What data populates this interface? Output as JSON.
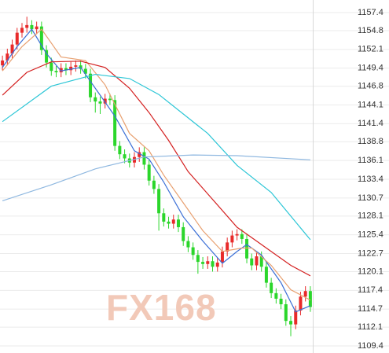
{
  "chart_data": {
    "type": "candlestick",
    "watermark": "FX168",
    "up_color": "#e82a2a",
    "down_color": "#2bd62b",
    "ylim": [
      1109.4,
      1157.4
    ],
    "yticks": [
      1157.4,
      1154.8,
      1152.1,
      1149.4,
      1146.8,
      1144.1,
      1141.4,
      1138.8,
      1136.1,
      1133.4,
      1130.7,
      1128.1,
      1125.4,
      1122.7,
      1120.1,
      1117.4,
      1114.7,
      1112.1,
      1109.4
    ],
    "grid": true,
    "xlim": [
      0,
      64
    ],
    "open": [
      1149.8,
      1150.5,
      1151.5,
      1152.8,
      1154.5,
      1155.2,
      1155.6,
      1155.0,
      1155.4,
      1152.0,
      1150.2,
      1149.0,
      1148.8,
      1149.4,
      1149.1,
      1149.6,
      1149.8,
      1149.3,
      1148.6,
      1145.2,
      1144.6,
      1144.3,
      1145.0,
      1144.8,
      1138.2,
      1137.0,
      1136.4,
      1135.8,
      1136.6,
      1137.3,
      1135.5,
      1133.2,
      1132.0,
      1128.5,
      1127.3,
      1127.0,
      1127.6,
      1126.5,
      1124.5,
      1123.6,
      1122.5,
      1121.5,
      1121.2,
      1121.6,
      1120.8,
      1121.4,
      1123.0,
      1124.3,
      1125.3,
      1125.5,
      1124.8,
      1122.0,
      1121.0,
      1122.3,
      1120.8,
      1118.5,
      1117.0,
      1116.2,
      1115.4,
      1113.0,
      1112.5,
      1114.5,
      1116.5,
      1117.3
    ],
    "high": [
      1151.2,
      1152.2,
      1153.5,
      1155.2,
      1155.9,
      1156.8,
      1156.3,
      1156.1,
      1156.1,
      1152.7,
      1150.9,
      1149.7,
      1150.1,
      1150.1,
      1150.3,
      1150.5,
      1150.5,
      1150.0,
      1149.3,
      1145.9,
      1145.3,
      1145.7,
      1145.7,
      1145.5,
      1138.9,
      1137.7,
      1137.1,
      1137.3,
      1138.0,
      1138.0,
      1136.2,
      1133.9,
      1132.7,
      1129.2,
      1128.0,
      1128.3,
      1128.3,
      1127.2,
      1125.2,
      1124.3,
      1123.2,
      1122.2,
      1122.3,
      1122.3,
      1122.1,
      1123.7,
      1125.0,
      1126.0,
      1126.2,
      1126.2,
      1125.5,
      1122.7,
      1123.0,
      1123.0,
      1121.5,
      1119.2,
      1117.7,
      1116.9,
      1116.1,
      1113.7,
      1115.2,
      1117.2,
      1118.0,
      1118.0
    ],
    "low": [
      1149.1,
      1149.8,
      1150.8,
      1152.1,
      1153.8,
      1154.5,
      1154.3,
      1154.3,
      1151.3,
      1149.5,
      1148.3,
      1148.1,
      1148.1,
      1148.4,
      1148.4,
      1148.9,
      1148.6,
      1147.9,
      1144.5,
      1143.0,
      1142.8,
      1143.6,
      1144.1,
      1137.5,
      1136.3,
      1135.7,
      1135.1,
      1135.1,
      1135.9,
      1134.8,
      1132.5,
      1131.3,
      1126.0,
      1126.6,
      1126.3,
      1126.3,
      1125.8,
      1123.8,
      1122.9,
      1121.8,
      1119.8,
      1120.5,
      1120.5,
      1120.1,
      1120.1,
      1120.7,
      1122.3,
      1123.6,
      1124.6,
      1124.1,
      1121.3,
      1120.3,
      1120.3,
      1120.1,
      1117.8,
      1116.3,
      1115.5,
      1114.7,
      1112.3,
      1110.8,
      1111.8,
      1113.8,
      1115.8,
      1114.3
    ],
    "close": [
      1150.5,
      1151.5,
      1152.8,
      1154.5,
      1155.2,
      1155.6,
      1155.0,
      1155.4,
      1152.0,
      1150.2,
      1149.0,
      1148.8,
      1149.4,
      1149.1,
      1149.6,
      1149.8,
      1149.3,
      1148.6,
      1145.2,
      1144.6,
      1144.3,
      1145.0,
      1144.8,
      1138.2,
      1137.0,
      1136.4,
      1135.8,
      1136.6,
      1137.3,
      1135.5,
      1133.2,
      1132.0,
      1128.5,
      1127.3,
      1127.0,
      1127.6,
      1126.5,
      1124.5,
      1123.6,
      1122.5,
      1121.5,
      1121.2,
      1121.6,
      1120.8,
      1121.4,
      1123.0,
      1124.3,
      1125.3,
      1125.5,
      1124.8,
      1122.0,
      1121.0,
      1122.3,
      1120.8,
      1118.5,
      1117.0,
      1116.2,
      1115.4,
      1113.0,
      1112.5,
      1114.5,
      1116.5,
      1117.3,
      1115.0
    ],
    "lines": [
      {
        "color": "#3b6fd6",
        "x": [
          0,
          3,
          6,
          9,
          12,
          16,
          20,
          23,
          27,
          30,
          33,
          37,
          41,
          45,
          48,
          50,
          53,
          57,
          60,
          63
        ],
        "values": [
          1149.5,
          1152.5,
          1155,
          1151.5,
          1149,
          1149.5,
          1145.5,
          1142.5,
          1137.5,
          1136.3,
          1133,
          1128,
          1124.5,
          1121.3,
          1123,
          1124,
          1122.5,
          1118.5,
          1114.3,
          1115.2
        ]
      },
      {
        "color": "#e8a070",
        "x": [
          0,
          4,
          8,
          12,
          17,
          21,
          26,
          30,
          33,
          37,
          41,
          45,
          49,
          51,
          55,
          59,
          63
        ],
        "values": [
          1149,
          1152.5,
          1155,
          1151,
          1150.5,
          1147,
          1140,
          1137.5,
          1134,
          1130,
          1126,
          1123,
          1123.5,
          1123.5,
          1121,
          1117.5,
          1116
        ]
      },
      {
        "color": "#d42020",
        "x": [
          0,
          5,
          10,
          16,
          21,
          26,
          30,
          34,
          38,
          43,
          48,
          52,
          55,
          59,
          63
        ],
        "values": [
          1145.5,
          1148.8,
          1150.3,
          1150.4,
          1149.5,
          1146.5,
          1143,
          1139,
          1134.5,
          1130.5,
          1126.5,
          1124.5,
          1123,
          1121,
          1119.5
        ]
      },
      {
        "color": "#2cc6d6",
        "x": [
          0,
          10,
          19,
          26,
          32,
          42,
          48,
          55,
          63
        ],
        "values": [
          1141.7,
          1146.8,
          1148.5,
          1147.9,
          1145.6,
          1140,
          1135.4,
          1131.5,
          1124.7
        ]
      },
      {
        "color": "#8fb8e0",
        "x": [
          0,
          10,
          19,
          29,
          39,
          48,
          63
        ],
        "values": [
          1130.3,
          1132.6,
          1134.9,
          1136.6,
          1136.9,
          1136.8,
          1136.2
        ]
      }
    ]
  }
}
